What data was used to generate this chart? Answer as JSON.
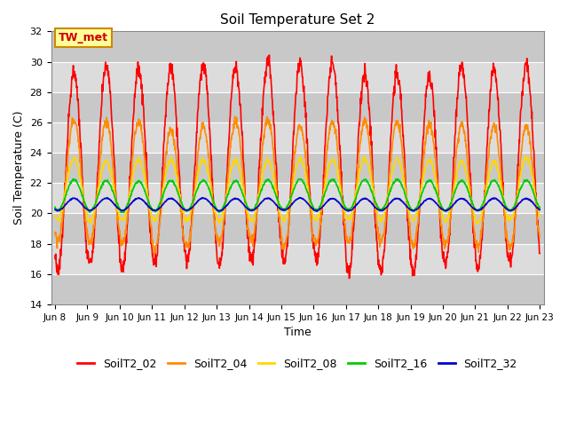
{
  "title": "Soil Temperature Set 2",
  "xlabel": "Time",
  "ylabel": "Soil Temperature (C)",
  "ylim": [
    14,
    32
  ],
  "xtick_labels": [
    "Jun 8",
    "Jun 9",
    "Jun 10",
    "Jun 11",
    "Jun 12",
    "Jun 13",
    "Jun 14",
    "Jun 15",
    "Jun 16",
    "Jun 17",
    "Jun 18",
    "Jun 19",
    "Jun 20",
    "Jun 21",
    "Jun 22",
    "Jun 23"
  ],
  "ytick_values": [
    14,
    16,
    18,
    20,
    22,
    24,
    26,
    28,
    30,
    32
  ],
  "series": [
    {
      "name": "SoilT2_02",
      "color": "#FF0000",
      "amplitude": 6.5,
      "base": 23.0,
      "trend": 0.0,
      "linewidth": 1.2
    },
    {
      "name": "SoilT2_04",
      "color": "#FF8C00",
      "amplitude": 4.0,
      "base": 22.0,
      "trend": 0.0,
      "linewidth": 1.2
    },
    {
      "name": "SoilT2_08",
      "color": "#FFD700",
      "amplitude": 2.0,
      "base": 21.5,
      "trend": 0.0,
      "linewidth": 1.2
    },
    {
      "name": "SoilT2_16",
      "color": "#00CC00",
      "amplitude": 1.0,
      "base": 21.2,
      "trend": 0.0,
      "linewidth": 1.2
    },
    {
      "name": "SoilT2_32",
      "color": "#0000CD",
      "amplitude": 0.4,
      "base": 20.6,
      "trend": 0.0,
      "linewidth": 1.2
    }
  ],
  "annotation_text": "TW_met",
  "annotation_color": "#CC0000",
  "annotation_bg": "#FFFF99",
  "annotation_border": "#CC8800",
  "plot_bg": "#DCDCDC",
  "band_colors": [
    "#C8C8C8",
    "#DCDCDC"
  ],
  "hours_per_day": 24,
  "num_days": 15,
  "samples_per_hour": 4
}
